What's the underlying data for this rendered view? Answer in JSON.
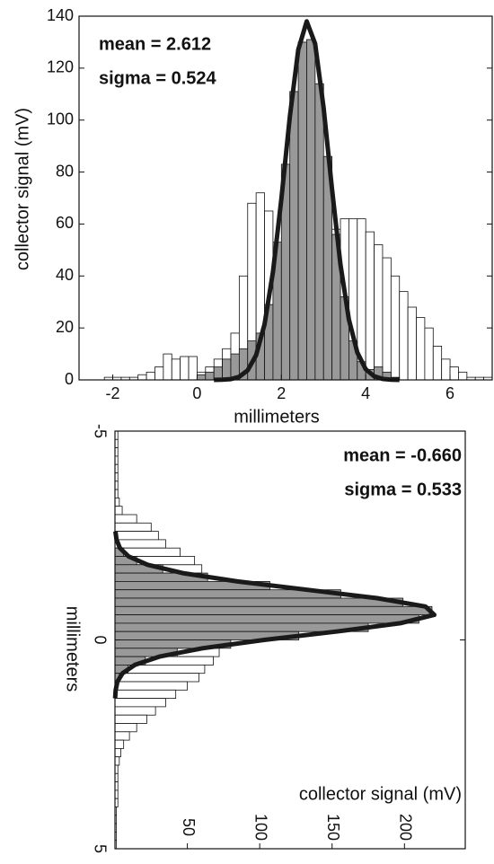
{
  "chart_data": [
    {
      "type": "histogram",
      "orientation": "vertical",
      "xlabel": "millimeters",
      "ylabel": "collector signal (mV)",
      "xlim": [
        -2.8,
        7
      ],
      "xticks": [
        -2,
        0,
        2,
        4,
        6
      ],
      "ylim": [
        0,
        140
      ],
      "yticks": [
        0,
        20,
        40,
        60,
        80,
        100,
        120,
        140
      ],
      "annotations": [
        "mean = 2.612",
        "sigma = 0.524"
      ],
      "bins": [
        -2.8,
        -2.6,
        -2.4,
        -2.2,
        -2,
        -1.8,
        -1.6,
        -1.4,
        -1.2,
        -1,
        -0.8,
        -0.6,
        -0.4,
        -0.2,
        0,
        0.2,
        0.4,
        0.6,
        0.8,
        1,
        1.2,
        1.4,
        1.6,
        1.8,
        2,
        2.2,
        2.4,
        2.6,
        2.8,
        3,
        3.2,
        3.4,
        3.6,
        3.8,
        4,
        4.2,
        4.4,
        4.6,
        4.8,
        5,
        5.2,
        5.4,
        5.6,
        5.8,
        6,
        6.2,
        6.4,
        6.6,
        6.8,
        7
      ],
      "series": [
        {
          "color": "#ffffff",
          "values": [
            0,
            0,
            0,
            1,
            1,
            1,
            1,
            2,
            3,
            5,
            10,
            8,
            9,
            9,
            3,
            5,
            8,
            12,
            18,
            40,
            68,
            72,
            65,
            50,
            55,
            60,
            60,
            61,
            61,
            60,
            58,
            62,
            62,
            62,
            57,
            52,
            47,
            40,
            34,
            28,
            24,
            20,
            13,
            8,
            5,
            3,
            1,
            1,
            1
          ]
        },
        {
          "color": "#999999",
          "values": [
            0,
            0,
            0,
            0,
            0,
            0,
            0,
            0,
            0,
            0,
            0,
            0,
            0,
            0,
            2,
            3,
            5,
            8,
            10,
            12,
            15,
            18,
            29,
            53,
            83,
            111,
            130,
            131,
            114,
            86,
            56,
            32,
            15,
            7,
            4,
            5,
            3,
            1,
            0,
            0,
            0,
            0,
            0,
            0,
            0,
            0,
            0,
            0,
            0
          ]
        }
      ],
      "fit": {
        "color": "#1a1a1a",
        "positions": [
          0.4,
          0.6,
          0.8,
          1,
          1.2,
          1.4,
          1.6,
          1.8,
          2,
          2.2,
          2.4,
          2.6,
          2.8,
          3,
          3.2,
          3.4,
          3.6,
          3.8,
          4,
          4.2,
          4.4,
          4.6,
          4.8
        ],
        "values": [
          0,
          0.1,
          0.3,
          1.2,
          3.7,
          9.5,
          21.4,
          41.6,
          69.8,
          101.3,
          127.1,
          138,
          129.4,
          104.9,
          73.5,
          44.5,
          23.3,
          10.6,
          4.1,
          1.4,
          0.4,
          0.1,
          0
        ]
      }
    },
    {
      "type": "histogram",
      "orientation": "horizontal",
      "xlabel": "collector signal (mV)",
      "ylabel": "millimeters",
      "xlim": [
        0,
        242
      ],
      "xticks": [
        50,
        100,
        150,
        200
      ],
      "ylim": [
        -5,
        5
      ],
      "yticks": [
        -5,
        0,
        5
      ],
      "annotations": [
        "mean = -0.660",
        "sigma = 0.533"
      ],
      "bins": [
        -5,
        -4.8,
        -4.6,
        -4.4,
        -4.2,
        -4,
        -3.8,
        -3.6,
        -3.4,
        -3.2,
        -3,
        -2.8,
        -2.6,
        -2.4,
        -2.2,
        -2,
        -1.8,
        -1.6,
        -1.4,
        -1.2,
        -1,
        -0.8,
        -0.6,
        -0.4,
        -0.2,
        0,
        0.2,
        0.4,
        0.6,
        0.8,
        1,
        1.2,
        1.4,
        1.6,
        1.8,
        2,
        2.2,
        2.4,
        2.6,
        2.8,
        3,
        3.2,
        3.4,
        3.6,
        3.8,
        4,
        4.2,
        4.4,
        4.6,
        4.8,
        5
      ],
      "series": [
        {
          "color": "#ffffff",
          "values": [
            2,
            2,
            2,
            2,
            2,
            2,
            2,
            2,
            3,
            5,
            15,
            25,
            30,
            35,
            45,
            55,
            60,
            58,
            60,
            62,
            62,
            62,
            62,
            62,
            65,
            70,
            72,
            68,
            62,
            58,
            50,
            42,
            35,
            28,
            22,
            15,
            10,
            6,
            4,
            3,
            2,
            2,
            2,
            2,
            2,
            1,
            1,
            1,
            1,
            1
          ]
        },
        {
          "color": "#999999",
          "values": [
            0,
            0,
            0,
            0,
            0,
            0,
            0,
            0,
            0,
            0,
            0,
            0,
            0,
            0,
            6,
            15,
            33,
            64,
            107,
            156,
            199,
            219,
            210,
            175,
            127,
            80,
            43,
            21,
            9,
            3,
            1,
            0,
            0,
            0,
            0,
            0,
            0,
            0,
            0,
            0,
            0,
            0,
            0,
            0,
            0,
            0,
            0,
            0,
            0,
            0
          ]
        }
      ],
      "fit": {
        "color": "#1a1a1a",
        "positions": [
          -2.6,
          -2.4,
          -2.2,
          -2,
          -1.8,
          -1.6,
          -1.4,
          -1.2,
          -1,
          -0.8,
          -0.6,
          -0.4,
          -0.2,
          0,
          0.2,
          0.4,
          0.6,
          0.8,
          1,
          1.2,
          1.4
        ],
        "values": [
          0.3,
          1.1,
          3.4,
          9.4,
          22.5,
          46.8,
          84.7,
          132.9,
          181.1,
          214.5,
          220.6,
          197.1,
          152.9,
          103.1,
          60.4,
          30.7,
          13.6,
          5.2,
          1.7,
          0.5,
          0.1
        ]
      }
    }
  ]
}
